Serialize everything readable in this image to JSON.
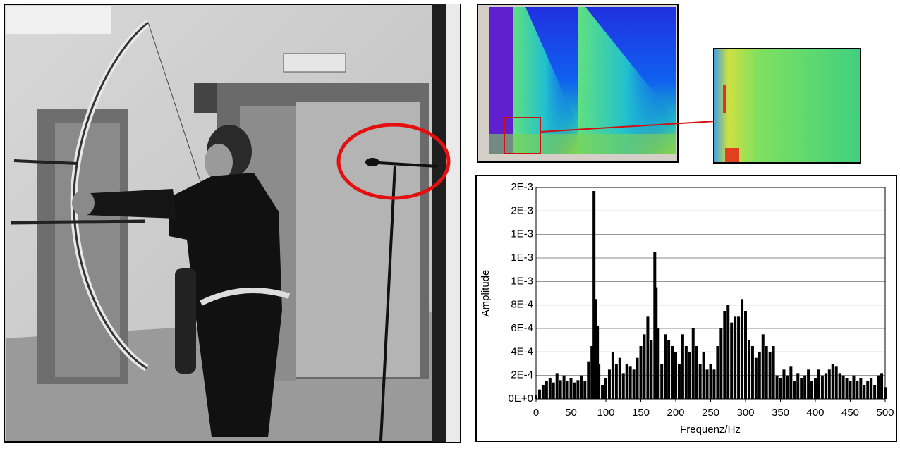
{
  "chart_data": {
    "type": "bar",
    "x_label": "Frequenz/Hz",
    "y_label": "Amplitude",
    "color": "#000000",
    "grid": true,
    "xlim": [
      0,
      500
    ],
    "xticks": [
      0,
      50,
      100,
      150,
      200,
      250,
      300,
      350,
      400,
      450,
      500
    ],
    "ylim": [
      0,
      0.0018
    ],
    "yticks": [
      {
        "value": 0,
        "label": "0E+0"
      },
      {
        "value": 0.0002,
        "label": "2E-4"
      },
      {
        "value": 0.0004,
        "label": "4E-4"
      },
      {
        "value": 0.0006,
        "label": "6E-4"
      },
      {
        "value": 0.0008,
        "label": "8E-4"
      },
      {
        "value": 0.001,
        "label": "1E-3"
      },
      {
        "value": 0.0012,
        "label": "1E-3"
      },
      {
        "value": 0.0014,
        "label": "1E-3"
      },
      {
        "value": 0.0016,
        "label": "2E-3"
      },
      {
        "value": 0.0018,
        "label": "2E-3"
      }
    ],
    "x": [
      0,
      5,
      10,
      15,
      20,
      25,
      30,
      35,
      40,
      45,
      50,
      55,
      60,
      65,
      70,
      75,
      80,
      83,
      85,
      88,
      90,
      95,
      100,
      105,
      110,
      115,
      120,
      125,
      130,
      135,
      140,
      145,
      150,
      155,
      160,
      165,
      170,
      172,
      175,
      180,
      185,
      190,
      195,
      200,
      205,
      210,
      215,
      220,
      225,
      230,
      235,
      240,
      245,
      250,
      255,
      260,
      265,
      270,
      275,
      280,
      285,
      290,
      295,
      300,
      305,
      310,
      315,
      320,
      325,
      330,
      335,
      340,
      345,
      350,
      355,
      360,
      365,
      370,
      375,
      380,
      385,
      390,
      395,
      400,
      405,
      410,
      415,
      420,
      425,
      430,
      435,
      440,
      445,
      450,
      455,
      460,
      465,
      470,
      475,
      480,
      485,
      490,
      495,
      500
    ],
    "values": [
      3e-05,
      8e-05,
      0.00012,
      0.00015,
      0.00018,
      0.00014,
      0.00022,
      0.00016,
      0.0002,
      0.00015,
      0.00018,
      0.00014,
      0.00016,
      0.0002,
      0.00015,
      0.00032,
      0.00045,
      0.00177,
      0.00085,
      0.00062,
      0.0003,
      0.00012,
      0.00018,
      0.00025,
      0.0004,
      0.0003,
      0.00035,
      0.00022,
      0.0003,
      0.00028,
      0.00025,
      0.00035,
      0.00045,
      0.00055,
      0.0007,
      0.0005,
      0.00125,
      0.00095,
      0.0006,
      0.0003,
      0.00055,
      0.0005,
      0.00045,
      0.0004,
      0.0003,
      0.00055,
      0.00045,
      0.0004,
      0.0006,
      0.00045,
      0.0003,
      0.0004,
      0.00025,
      0.0003,
      0.00025,
      0.00045,
      0.0006,
      0.00075,
      0.0008,
      0.00065,
      0.0007,
      0.0007,
      0.00085,
      0.00075,
      0.0005,
      0.00045,
      0.00035,
      0.0004,
      0.00055,
      0.00045,
      0.0004,
      0.00045,
      0.0002,
      0.00018,
      0.00025,
      0.0002,
      0.00028,
      0.00015,
      0.00022,
      0.00018,
      0.0002,
      0.00025,
      0.00015,
      0.00018,
      0.00025,
      0.0002,
      0.00022,
      0.00025,
      0.0003,
      0.00028,
      0.00022,
      0.0002,
      0.00018,
      0.00015,
      0.0002,
      0.00015,
      0.00018,
      0.00012,
      0.00015,
      0.00018,
      0.00012,
      0.0002,
      0.00022,
      0.0001
    ]
  }
}
